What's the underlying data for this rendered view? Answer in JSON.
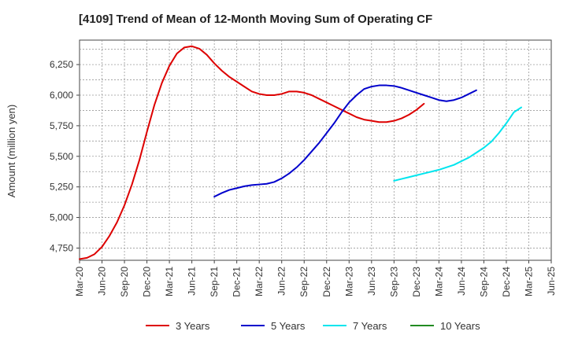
{
  "chart_data": {
    "type": "line",
    "title": "[4109]  Trend of Mean of 12-Month Moving Sum of Operating CF",
    "xlabel": "",
    "ylabel": "Amount (million yen)",
    "ylim": [
      4650,
      6450
    ],
    "y_ticks": [
      4750,
      5000,
      5250,
      5500,
      5750,
      6000,
      6250
    ],
    "y_tick_labels": [
      "4,750",
      "5,000",
      "5,250",
      "5,500",
      "5,750",
      "6,000",
      "6,250"
    ],
    "x_tick_labels": [
      "Mar-20",
      "Jun-20",
      "Sep-20",
      "Dec-20",
      "Mar-21",
      "Jun-21",
      "Sep-21",
      "Dec-21",
      "Mar-22",
      "Jun-22",
      "Sep-22",
      "Dec-22",
      "Mar-23",
      "Jun-23",
      "Sep-23",
      "Dec-23",
      "Mar-24",
      "Jun-24",
      "Sep-24",
      "Dec-24",
      "Mar-25",
      "Jun-25"
    ],
    "grid": true,
    "legend_position": "bottom",
    "series": [
      {
        "name": "3 Years",
        "color": "#dd0000",
        "start_index": 0,
        "values": [
          4660,
          4670,
          4700,
          4760,
          4850,
          4960,
          5100,
          5270,
          5470,
          5700,
          5920,
          6100,
          6240,
          6340,
          6390,
          6400,
          6380,
          6330,
          6260,
          6200,
          6150,
          6110,
          6070,
          6030,
          6010,
          6000,
          6000,
          6010,
          6030,
          6030,
          6020,
          6000,
          5970,
          5940,
          5910,
          5880,
          5850,
          5820,
          5800,
          5790,
          5780,
          5780,
          5790,
          5810,
          5840,
          5880,
          5930
        ]
      },
      {
        "name": "5 Years",
        "color": "#0000cc",
        "start_index": 18,
        "values": [
          5170,
          5200,
          5225,
          5240,
          5255,
          5265,
          5270,
          5275,
          5290,
          5320,
          5360,
          5410,
          5470,
          5540,
          5610,
          5690,
          5770,
          5860,
          5940,
          6000,
          6050,
          6070,
          6080,
          6080,
          6075,
          6060,
          6040,
          6020,
          6000,
          5980,
          5960,
          5950,
          5960,
          5980,
          6010,
          6040
        ]
      },
      {
        "name": "7 Years",
        "color": "#00e5ee",
        "start_index": 42,
        "values": [
          5300,
          5315,
          5330,
          5345,
          5360,
          5375,
          5390,
          5410,
          5430,
          5460,
          5490,
          5530,
          5570,
          5620,
          5690,
          5770,
          5860,
          5900
        ]
      },
      {
        "name": "10 Years",
        "color": "#228b22",
        "start_index": 0,
        "values": []
      }
    ]
  }
}
